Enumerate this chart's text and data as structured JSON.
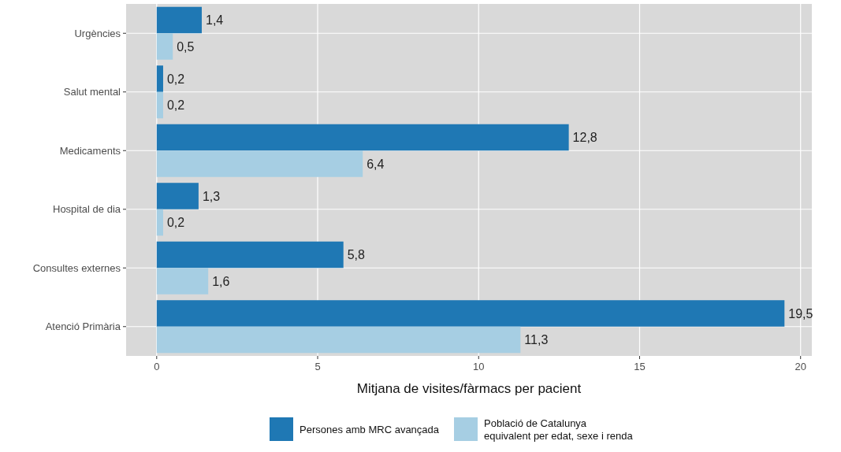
{
  "chart_data": {
    "type": "bar",
    "orientation": "horizontal",
    "xlabel": "Mitjana de visites/fàrmacs per pacient",
    "categories": [
      "Urgències",
      "Salut mental",
      "Medicaments",
      "Hospital de dia",
      "Consultes externes",
      "Atenció Primària"
    ],
    "series": [
      {
        "name": "Persones amb MRC avançada",
        "color": "#1f78b4",
        "values": [
          1.4,
          0.2,
          12.8,
          1.3,
          5.8,
          19.5
        ],
        "value_labels": [
          "1,4",
          "0,2",
          "12,8",
          "1,3",
          "5,8",
          "19,5"
        ]
      },
      {
        "name": "Població de Catalunya\nequivalent per edat, sexe i renda",
        "color": "#a6cee3",
        "values": [
          0.5,
          0.2,
          6.4,
          0.2,
          1.6,
          11.3
        ],
        "value_labels": [
          "0,5",
          "0,2",
          "6,4",
          "0,2",
          "1,6",
          "11,3"
        ]
      }
    ],
    "xlim": [
      -0.95,
      20.35
    ],
    "xticks": [
      0,
      5,
      10,
      15,
      20
    ],
    "grid": true,
    "legend": "bottom"
  }
}
